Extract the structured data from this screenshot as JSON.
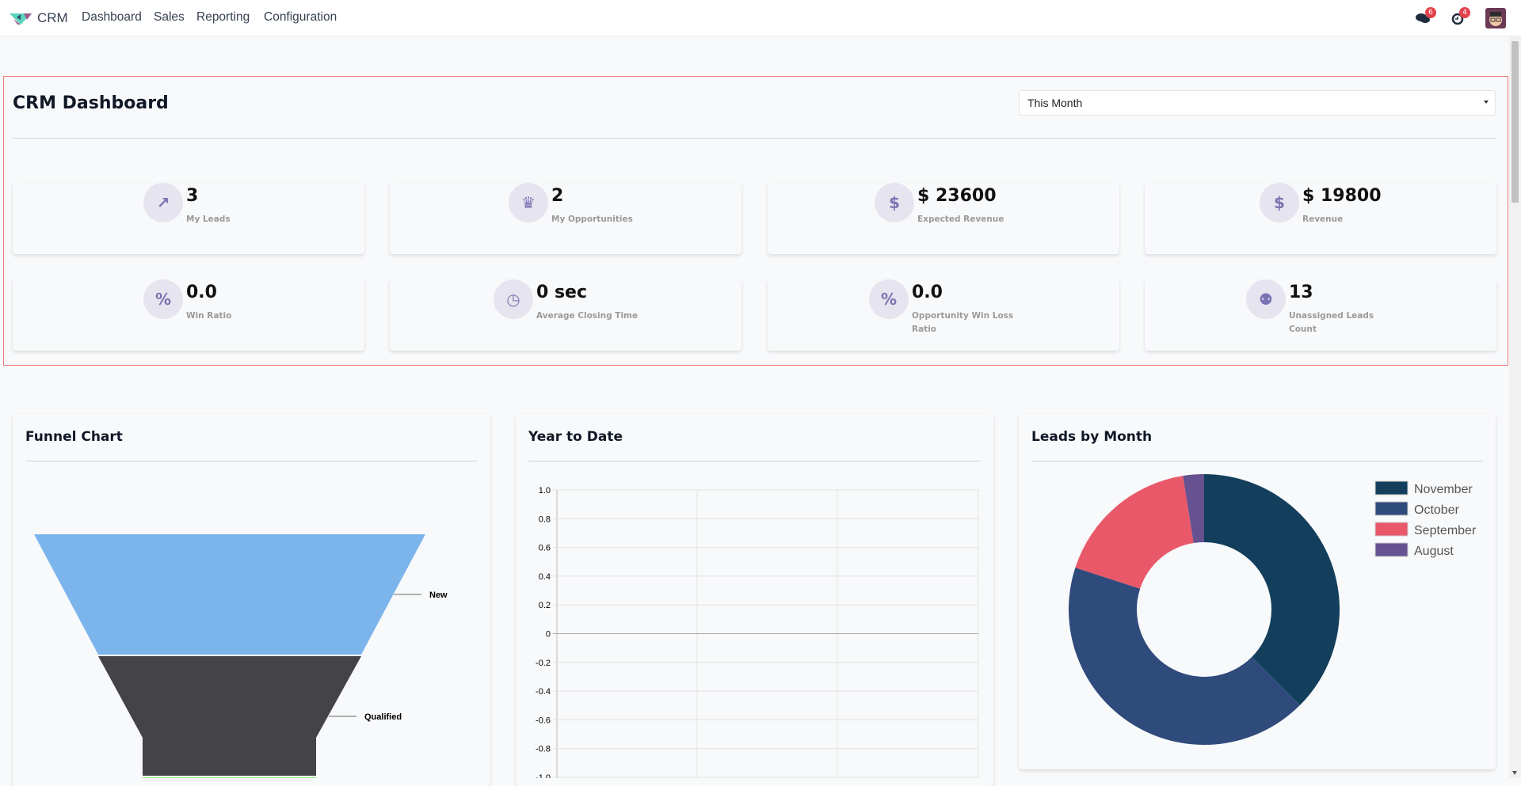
{
  "navbar": {
    "app_name": "CRM",
    "menu": [
      "Dashboard",
      "Sales",
      "Reporting",
      "Configuration"
    ],
    "messages_badge": "6",
    "activities_badge": "4",
    "icons": [
      "odoo-crm-logo",
      "chat-icon",
      "clock-icon",
      "user-avatar"
    ]
  },
  "dashboard": {
    "title": "CRM Dashboard",
    "period_select": "This Month",
    "kpis": [
      {
        "value": "3",
        "label": "My Leads",
        "icon": "chart-line-icon"
      },
      {
        "value": "2",
        "label": "My Opportunities",
        "icon": "trophy-icon"
      },
      {
        "value": "$ 23600",
        "label": "Expected Revenue",
        "icon": "dollar-icon"
      },
      {
        "value": "$ 19800",
        "label": "Revenue",
        "icon": "dollar-icon"
      },
      {
        "value": "0.0",
        "label": "Win Ratio",
        "icon": "percent-icon"
      },
      {
        "value": "0 sec",
        "label": "Average Closing Time",
        "icon": "clock-icon"
      },
      {
        "value": "0.0",
        "label": "Opportunity Win Loss Ratio",
        "icon": "percent-icon"
      },
      {
        "value": "13",
        "label": "Unassigned Leads Count",
        "icon": "user-x-icon"
      }
    ],
    "accent_color": "#7b73b3"
  },
  "chart_data": [
    {
      "type": "funnel",
      "title": "Funnel Chart",
      "stages": [
        {
          "name": "New",
          "color": "#7cb5ec"
        },
        {
          "name": "Qualified",
          "color": "#434348"
        },
        {
          "name": "",
          "color": "#90ed7d"
        }
      ]
    },
    {
      "type": "line",
      "title": "Year to Date",
      "series": [],
      "ylim": [
        -1.0,
        1.0
      ],
      "yticks": [
        "1.0",
        "0.8",
        "0.6",
        "0.4",
        "0.2",
        "0",
        "-0.2",
        "-0.4",
        "-0.6",
        "-0.8",
        "-1.0"
      ],
      "grid": true
    },
    {
      "type": "pie",
      "donut": true,
      "title": "Leads by Month",
      "categories": [
        "November",
        "October",
        "September",
        "August"
      ],
      "values": [
        37.5,
        42.5,
        17.5,
        2.5
      ],
      "colors": [
        "#133f5c",
        "#2f4b7c",
        "#e95869",
        "#665191"
      ],
      "legend": "top-right"
    }
  ]
}
